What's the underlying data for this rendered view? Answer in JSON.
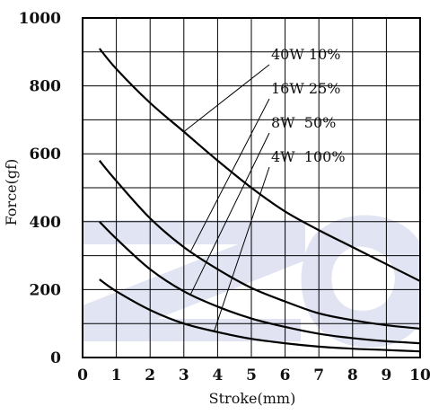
{
  "chart_data": {
    "type": "line",
    "xlabel": "Stroke(mm)",
    "ylabel": "Force(gf)",
    "xlim": [
      0,
      10
    ],
    "ylim": [
      0,
      1000
    ],
    "x_ticks": [
      "0",
      "1",
      "2",
      "3",
      "4",
      "5",
      "6",
      "7",
      "8",
      "9",
      "10"
    ],
    "y_ticks": [
      "0",
      "200",
      "400",
      "600",
      "800",
      "1000"
    ],
    "grid": true,
    "series": [
      {
        "name": "40W 10%",
        "x": [
          0.5,
          1,
          2,
          3,
          4,
          5,
          6,
          7,
          8,
          9,
          10
        ],
        "values": [
          910,
          850,
          750,
          665,
          580,
          500,
          430,
          375,
          325,
          275,
          225
        ]
      },
      {
        "name": "16W 25%",
        "x": [
          0.5,
          1,
          2,
          3,
          4,
          5,
          6,
          7,
          8,
          9,
          10
        ],
        "values": [
          580,
          520,
          410,
          325,
          260,
          205,
          165,
          130,
          110,
          95,
          85
        ]
      },
      {
        "name": "8W  50%",
        "x": [
          0.5,
          1,
          2,
          3,
          4,
          5,
          6,
          7,
          8,
          9,
          10
        ],
        "values": [
          400,
          350,
          260,
          195,
          150,
          115,
          90,
          70,
          57,
          48,
          42
        ]
      },
      {
        "name": "4W  100%",
        "x": [
          0.5,
          1,
          2,
          3,
          4,
          5,
          6,
          7,
          8,
          9,
          10
        ],
        "values": [
          230,
          195,
          140,
          100,
          75,
          55,
          42,
          32,
          26,
          22,
          18
        ]
      }
    ],
    "label_leaders": [
      {
        "series": 0,
        "at_x": 3.0
      },
      {
        "series": 1,
        "at_x": 3.2
      },
      {
        "series": 2,
        "at_x": 3.2
      },
      {
        "series": 3,
        "at_x": 3.9
      }
    ],
    "colors": {
      "line": "#000000",
      "grid": "#000000",
      "watermark": "#c9cde8"
    }
  }
}
